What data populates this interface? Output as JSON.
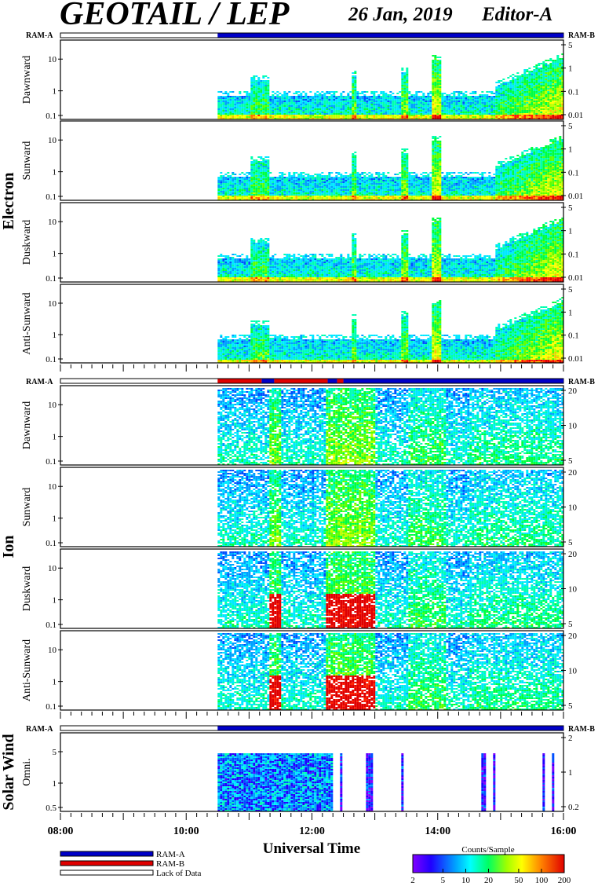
{
  "header": {
    "title": "GEOTAIL / LEP",
    "date": "26 Jan, 2019",
    "editor": "Editor-A"
  },
  "colors": {
    "ram_a": "#0000c8",
    "ram_b": "#e00000",
    "lack": "#ffffff",
    "palette": [
      "#8000ff",
      "#5a00ff",
      "#2000ff",
      "#0050ff",
      "#00a0ff",
      "#00e8ff",
      "#00ffb0",
      "#00ff40",
      "#60ff00",
      "#c0ff00",
      "#ffff00",
      "#ffc000",
      "#ff7000",
      "#ff2000",
      "#e00000"
    ]
  },
  "sections": {
    "electron": "Electron",
    "ion": "Ion",
    "solar_wind": "Solar Wind"
  },
  "ram_labels": {
    "left": "RAM-A",
    "right": "RAM-B"
  },
  "chart_data": {
    "type": "heatmap",
    "xlabel": "Universal Time",
    "x_ticks": [
      "08:00",
      "10:00",
      "12:00",
      "14:00",
      "16:00"
    ],
    "x_range_hours": [
      8,
      16
    ],
    "data_start_hour": 10.5,
    "bars": [
      {
        "segments": [
          {
            "from": 8,
            "to": 10.5,
            "mode": "lack"
          },
          {
            "from": 10.5,
            "to": 16,
            "mode": "ram_a"
          }
        ]
      },
      {
        "segments": [
          {
            "from": 8,
            "to": 10.5,
            "mode": "lack"
          },
          {
            "from": 10.5,
            "to": 11.2,
            "mode": "ram_b"
          },
          {
            "from": 11.2,
            "to": 11.4,
            "mode": "ram_a"
          },
          {
            "from": 11.4,
            "to": 12.25,
            "mode": "ram_b"
          },
          {
            "from": 12.25,
            "to": 12.4,
            "mode": "ram_a"
          },
          {
            "from": 12.4,
            "to": 12.5,
            "mode": "ram_b"
          },
          {
            "from": 12.5,
            "to": 16,
            "mode": "ram_a"
          }
        ]
      },
      {
        "segments": [
          {
            "from": 8,
            "to": 10.5,
            "mode": "lack"
          },
          {
            "from": 10.5,
            "to": 16,
            "mode": "ram_a"
          }
        ]
      }
    ],
    "panels": [
      {
        "group": "electron",
        "label": "Dawnward",
        "left_ticks": [
          "10",
          "1",
          "0.1"
        ],
        "right_ticks": [
          "5",
          "1",
          "0.1",
          "0.01"
        ]
      },
      {
        "group": "electron",
        "label": "Sunward",
        "left_ticks": [
          "10",
          "1",
          "0.1"
        ],
        "right_ticks": [
          "5",
          "1",
          "0.1",
          "0.01"
        ]
      },
      {
        "group": "electron",
        "label": "Duskward",
        "left_ticks": [
          "10",
          "1",
          "0.1"
        ],
        "right_ticks": [
          "5",
          "1",
          "0.1",
          "0.01"
        ]
      },
      {
        "group": "electron",
        "label": "Anti-Sunward",
        "left_ticks": [
          "10",
          "1",
          "0.1"
        ],
        "right_ticks": [
          "5",
          "1",
          "0.1",
          "0.01"
        ]
      },
      {
        "group": "ion",
        "label": "Dawnward",
        "left_ticks": [
          "10",
          "1",
          "0.1"
        ],
        "right_ticks": [
          "20",
          "10",
          "5"
        ]
      },
      {
        "group": "ion",
        "label": "Sunward",
        "left_ticks": [
          "10",
          "1",
          "0.1"
        ],
        "right_ticks": [
          "20",
          "10",
          "5"
        ]
      },
      {
        "group": "ion",
        "label": "Duskward",
        "left_ticks": [
          "10",
          "1",
          "0.1"
        ],
        "right_ticks": [
          "20",
          "10",
          "5"
        ]
      },
      {
        "group": "ion",
        "label": "Anti-Sunward",
        "left_ticks": [
          "10",
          "1",
          "0.1"
        ],
        "right_ticks": [
          "20",
          "10",
          "5"
        ]
      },
      {
        "group": "solar_wind",
        "label": "Omni.",
        "left_ticks": [
          "5",
          "1",
          "0.5"
        ],
        "right_ticks": [
          "2",
          "1",
          "0.2"
        ]
      }
    ],
    "colorbar": {
      "title": "Counts/Sample",
      "ticks": [
        "2",
        "5",
        "10",
        "20",
        "50",
        "100",
        "200"
      ]
    },
    "legend": [
      {
        "label": "RAM-A",
        "color": "#0000c8"
      },
      {
        "label": "RAM-B",
        "color": "#e00000"
      },
      {
        "label": "Lack of Data",
        "color": "#ffffff"
      }
    ]
  }
}
